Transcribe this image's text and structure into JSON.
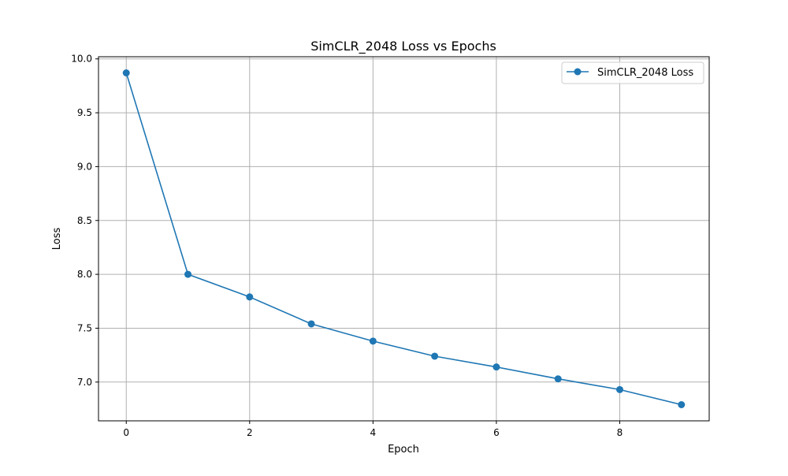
{
  "chart_data": {
    "type": "line",
    "title": "SimCLR_2048 Loss vs Epochs",
    "xlabel": "Epoch",
    "ylabel": "Loss",
    "xlim": [
      -0.45,
      9.45
    ],
    "ylim": [
      6.64,
      10.02
    ],
    "xticks": [
      0,
      2,
      4,
      6,
      8
    ],
    "yticks": [
      7.0,
      7.5,
      8.0,
      8.5,
      9.0,
      9.5,
      10.0
    ],
    "grid": true,
    "legend_position": "upper-right",
    "series": [
      {
        "name": "SimCLR_2048 Loss",
        "color": "#1f77b4",
        "marker": "circle",
        "x": [
          0,
          1,
          2,
          3,
          4,
          5,
          6,
          7,
          8,
          9
        ],
        "y": [
          9.87,
          8.0,
          7.79,
          7.54,
          7.38,
          7.24,
          7.14,
          7.03,
          6.93,
          6.79
        ]
      }
    ]
  }
}
